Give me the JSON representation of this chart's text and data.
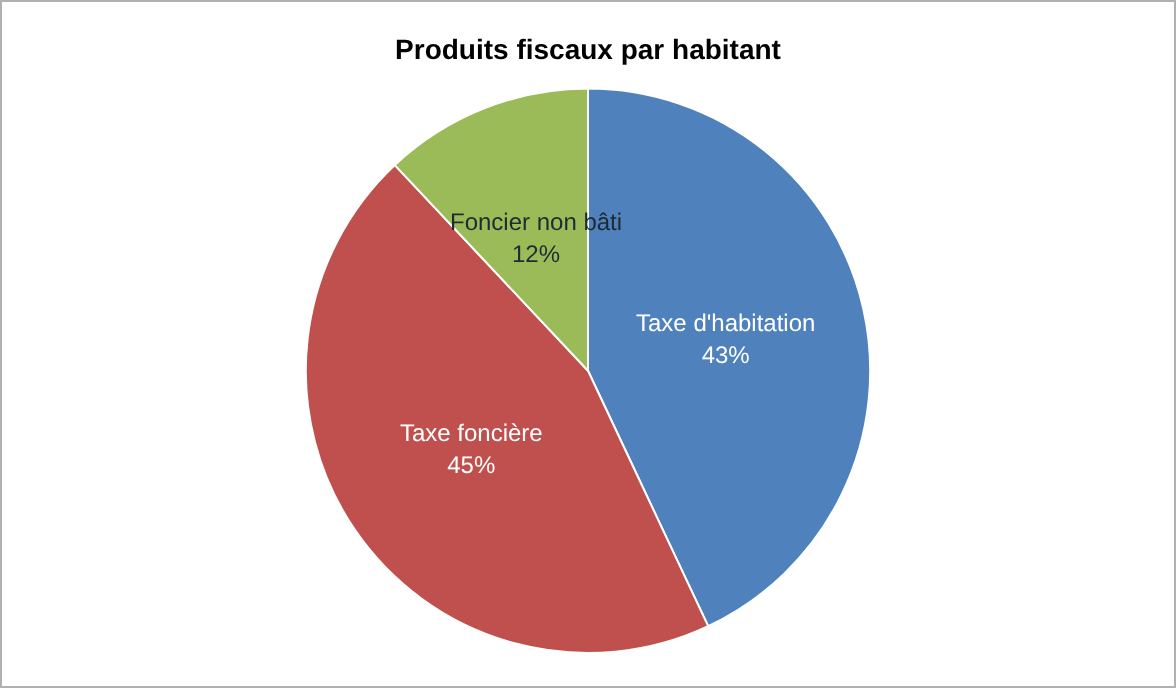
{
  "chart_data": {
    "type": "pie",
    "title": "Produits fiscaux par habitant",
    "categories": [
      "Taxe d'habitation",
      "Taxe foncière",
      "Foncier non bâti"
    ],
    "values": [
      43,
      45,
      12
    ],
    "colors": [
      "#4f81bd",
      "#c0504d",
      "#9bbb59"
    ],
    "value_labels": [
      "43%",
      "45%",
      "12%"
    ],
    "legend": false
  }
}
